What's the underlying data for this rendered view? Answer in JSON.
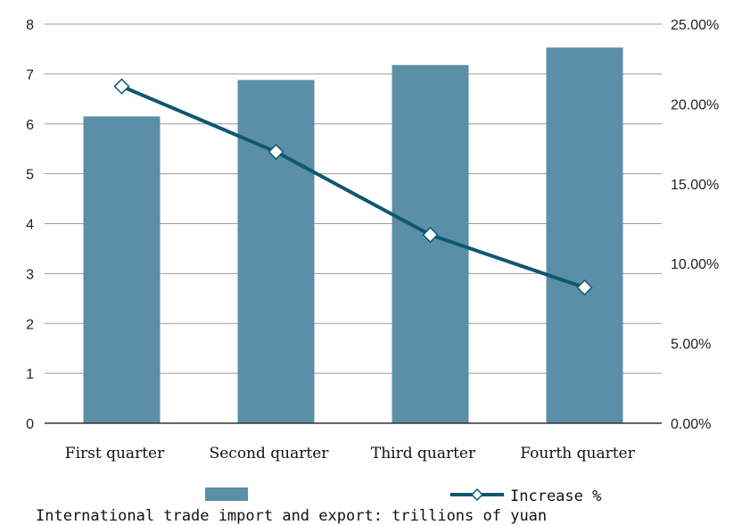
{
  "chart_data": {
    "type": "bar+line",
    "categories": [
      "First quarter",
      "Second quarter",
      "Third quarter",
      "Fourth quarter"
    ],
    "series": [
      {
        "name": "",
        "type": "bar",
        "axis": "left",
        "values": [
          6.15,
          6.88,
          7.18,
          7.53
        ]
      },
      {
        "name": "Increase %",
        "type": "line",
        "axis": "right",
        "values": [
          21.1,
          17.0,
          11.8,
          8.5
        ]
      }
    ],
    "y_left": {
      "min": 0,
      "max": 8,
      "step": 1,
      "ticks": [
        "0",
        "1",
        "2",
        "3",
        "4",
        "5",
        "6",
        "7",
        "8"
      ]
    },
    "y_right": {
      "min": 0,
      "max": 25,
      "step": 5,
      "ticks": [
        "0.00%",
        "5.00%",
        "10.00%",
        "15.00%",
        "20.00%",
        "25.00%"
      ]
    },
    "grid": true,
    "legend_position": "bottom",
    "caption": "International trade import and export: trillions of yuan",
    "colors": {
      "bar": "#5b8fa8",
      "line": "#0f5770",
      "grid": "#9a9a9a",
      "axis": "#333333",
      "marker_fill": "#ffffff"
    }
  }
}
